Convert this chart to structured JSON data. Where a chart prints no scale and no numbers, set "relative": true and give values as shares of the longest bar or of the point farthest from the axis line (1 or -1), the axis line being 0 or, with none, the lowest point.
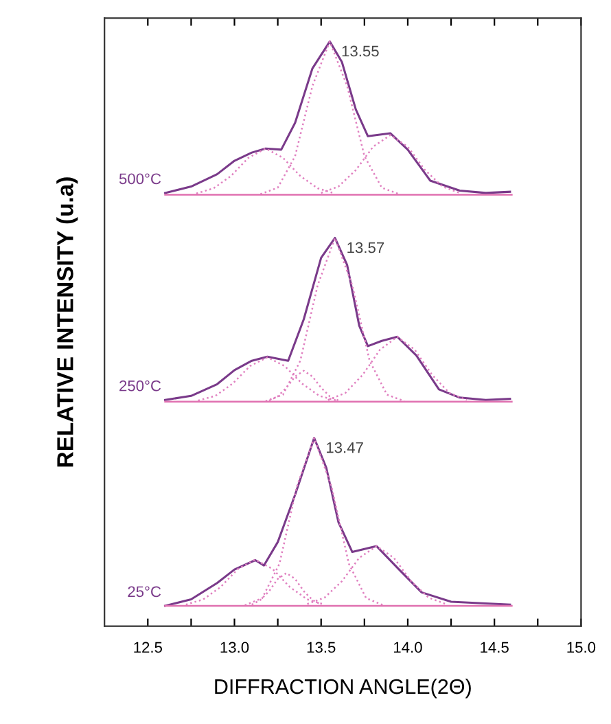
{
  "chart_data": {
    "type": "line",
    "relative": true,
    "xlabel": "DIFFRACTION ANGLE(2Θ)",
    "ylabel": "RELATIVE INTENSITY (u.a)",
    "xlim": [
      12.25,
      15.0
    ],
    "xticks": [
      12.5,
      {
        "value": 12.75,
        "label": null
      },
      {
        "value": 13.0,
        "label": "13.0"
      },
      {
        "value": 13.25,
        "label": null
      },
      13.5,
      {
        "value": 13.75,
        "label": null
      },
      {
        "value": 14.0,
        "label": "14.0"
      },
      {
        "value": 14.25,
        "label": null
      },
      14.5,
      {
        "value": 14.75,
        "label": null
      },
      {
        "value": 15.0,
        "label": "15.0"
      }
    ],
    "series": [
      {
        "name": "500°C",
        "color": "#7a3a8a",
        "line_style": "solid",
        "x": [
          12.6,
          12.75,
          12.9,
          13.0,
          13.1,
          13.18,
          13.27,
          13.35,
          13.45,
          13.55,
          13.62,
          13.7,
          13.77,
          13.9,
          14.0,
          14.13,
          14.3,
          14.45,
          14.59
        ],
        "values": [
          0.741,
          0.752,
          0.773,
          0.796,
          0.81,
          0.817,
          0.815,
          0.861,
          0.954,
          1.0,
          0.965,
          0.884,
          0.838,
          0.843,
          0.815,
          0.762,
          0.745,
          0.741,
          0.743
        ]
      },
      {
        "color": "#e080c0",
        "line_style": "dotted",
        "x": [
          12.78,
          12.88,
          12.98,
          13.08,
          13.18,
          13.28,
          13.38,
          13.48,
          13.58
        ],
        "values": [
          0.74,
          0.749,
          0.77,
          0.801,
          0.817,
          0.801,
          0.77,
          0.749,
          0.74
        ]
      },
      {
        "color": "#e080c0",
        "line_style": "dotted",
        "x": [
          13.15,
          13.25,
          13.35,
          13.45,
          13.55,
          13.65,
          13.75,
          13.85,
          13.95
        ],
        "values": [
          0.739,
          0.75,
          0.804,
          0.924,
          1.0,
          0.924,
          0.804,
          0.75,
          0.739
        ]
      },
      {
        "color": "#e080c0",
        "line_style": "dotted",
        "x": [
          13.5,
          13.6,
          13.7,
          13.8,
          13.9,
          14.0,
          14.1,
          14.2,
          14.3
        ],
        "values": [
          0.741,
          0.752,
          0.78,
          0.82,
          0.84,
          0.82,
          0.78,
          0.752,
          0.741
        ]
      },
      {
        "color": "#e070b0",
        "line_style": "solid",
        "x": [
          12.6,
          14.6
        ],
        "values": [
          0.738,
          0.738
        ]
      },
      {
        "name": "250°C",
        "color": "#7a3a8a",
        "line_style": "solid",
        "x": [
          12.6,
          12.75,
          12.9,
          13.0,
          13.1,
          13.19,
          13.31,
          13.4,
          13.5,
          13.58,
          13.65,
          13.72,
          13.77,
          13.85,
          13.94,
          14.05,
          14.18,
          14.3,
          14.45,
          14.59
        ],
        "values": [
          0.387,
          0.394,
          0.414,
          0.438,
          0.454,
          0.461,
          0.454,
          0.525,
          0.63,
          0.664,
          0.618,
          0.514,
          0.479,
          0.488,
          0.495,
          0.463,
          0.405,
          0.391,
          0.387,
          0.389
        ]
      },
      {
        "color": "#e080c0",
        "line_style": "dotted",
        "x": [
          12.79,
          12.89,
          12.99,
          13.09,
          13.19,
          13.29,
          13.39,
          13.49,
          13.59
        ],
        "values": [
          0.386,
          0.394,
          0.415,
          0.445,
          0.46,
          0.445,
          0.415,
          0.394,
          0.386
        ]
      },
      {
        "color": "#e080c0",
        "line_style": "dotted",
        "x": [
          13.2,
          13.25,
          13.3,
          13.35,
          13.4,
          13.45,
          13.5,
          13.55,
          13.6
        ],
        "values": [
          0.386,
          0.393,
          0.408,
          0.427,
          0.437,
          0.427,
          0.408,
          0.393,
          0.386
        ]
      },
      {
        "color": "#e080c0",
        "line_style": "dotted",
        "x": [
          13.18,
          13.28,
          13.38,
          13.48,
          13.58,
          13.68,
          13.78,
          13.88,
          13.98
        ],
        "values": [
          0.385,
          0.396,
          0.454,
          0.583,
          0.664,
          0.583,
          0.454,
          0.396,
          0.385
        ]
      },
      {
        "color": "#e080c0",
        "line_style": "dotted",
        "x": [
          13.54,
          13.64,
          13.74,
          13.84,
          13.94,
          14.04,
          14.14,
          14.24,
          14.34
        ],
        "values": [
          0.387,
          0.399,
          0.43,
          0.473,
          0.495,
          0.473,
          0.43,
          0.399,
          0.387
        ]
      },
      {
        "color": "#e070b0",
        "line_style": "solid",
        "x": [
          12.6,
          14.6
        ],
        "values": [
          0.384,
          0.384
        ]
      },
      {
        "name": "25°C",
        "color": "#7a3a8a",
        "line_style": "solid",
        "x": [
          12.6,
          12.75,
          12.9,
          13.0,
          13.12,
          13.17,
          13.25,
          13.35,
          13.46,
          13.53,
          13.6,
          13.68,
          13.82,
          13.95,
          14.08,
          14.25,
          14.45,
          14.59
        ],
        "values": [
          0.035,
          0.046,
          0.074,
          0.097,
          0.113,
          0.104,
          0.144,
          0.225,
          0.322,
          0.271,
          0.178,
          0.127,
          0.137,
          0.097,
          0.058,
          0.042,
          0.039,
          0.037
        ]
      },
      {
        "color": "#e080c0",
        "line_style": "dotted",
        "x": [
          12.72,
          12.82,
          12.92,
          13.02,
          13.12,
          13.22,
          13.32,
          13.42,
          13.52
        ],
        "values": [
          0.037,
          0.046,
          0.067,
          0.098,
          0.114,
          0.098,
          0.067,
          0.046,
          0.037
        ]
      },
      {
        "color": "#e080c0",
        "line_style": "dotted",
        "x": [
          13.1,
          13.15,
          13.2,
          13.25,
          13.3,
          13.35,
          13.4,
          13.45,
          13.5
        ],
        "values": [
          0.037,
          0.045,
          0.06,
          0.081,
          0.091,
          0.081,
          0.06,
          0.045,
          0.037
        ]
      },
      {
        "color": "#e080c0",
        "line_style": "dotted",
        "x": [
          13.06,
          13.16,
          13.26,
          13.36,
          13.46,
          13.56,
          13.66,
          13.76,
          13.86
        ],
        "values": [
          0.036,
          0.048,
          0.107,
          0.239,
          0.322,
          0.239,
          0.107,
          0.048,
          0.036
        ]
      },
      {
        "color": "#e080c0",
        "line_style": "dotted",
        "x": [
          13.42,
          13.52,
          13.62,
          13.72,
          13.82,
          13.92,
          14.02,
          14.12,
          14.22
        ],
        "values": [
          0.038,
          0.049,
          0.077,
          0.117,
          0.137,
          0.117,
          0.077,
          0.049,
          0.038
        ]
      },
      {
        "color": "#e070b0",
        "line_style": "solid",
        "x": [
          12.6,
          14.6
        ],
        "values": [
          0.035,
          0.035
        ]
      }
    ],
    "annotations": [
      {
        "text": "13.55",
        "x": 13.55,
        "y": 1.0
      },
      {
        "text": "13.57",
        "x": 13.58,
        "y": 0.664
      },
      {
        "text": "13.47",
        "x": 13.46,
        "y": 0.322
      }
    ]
  }
}
